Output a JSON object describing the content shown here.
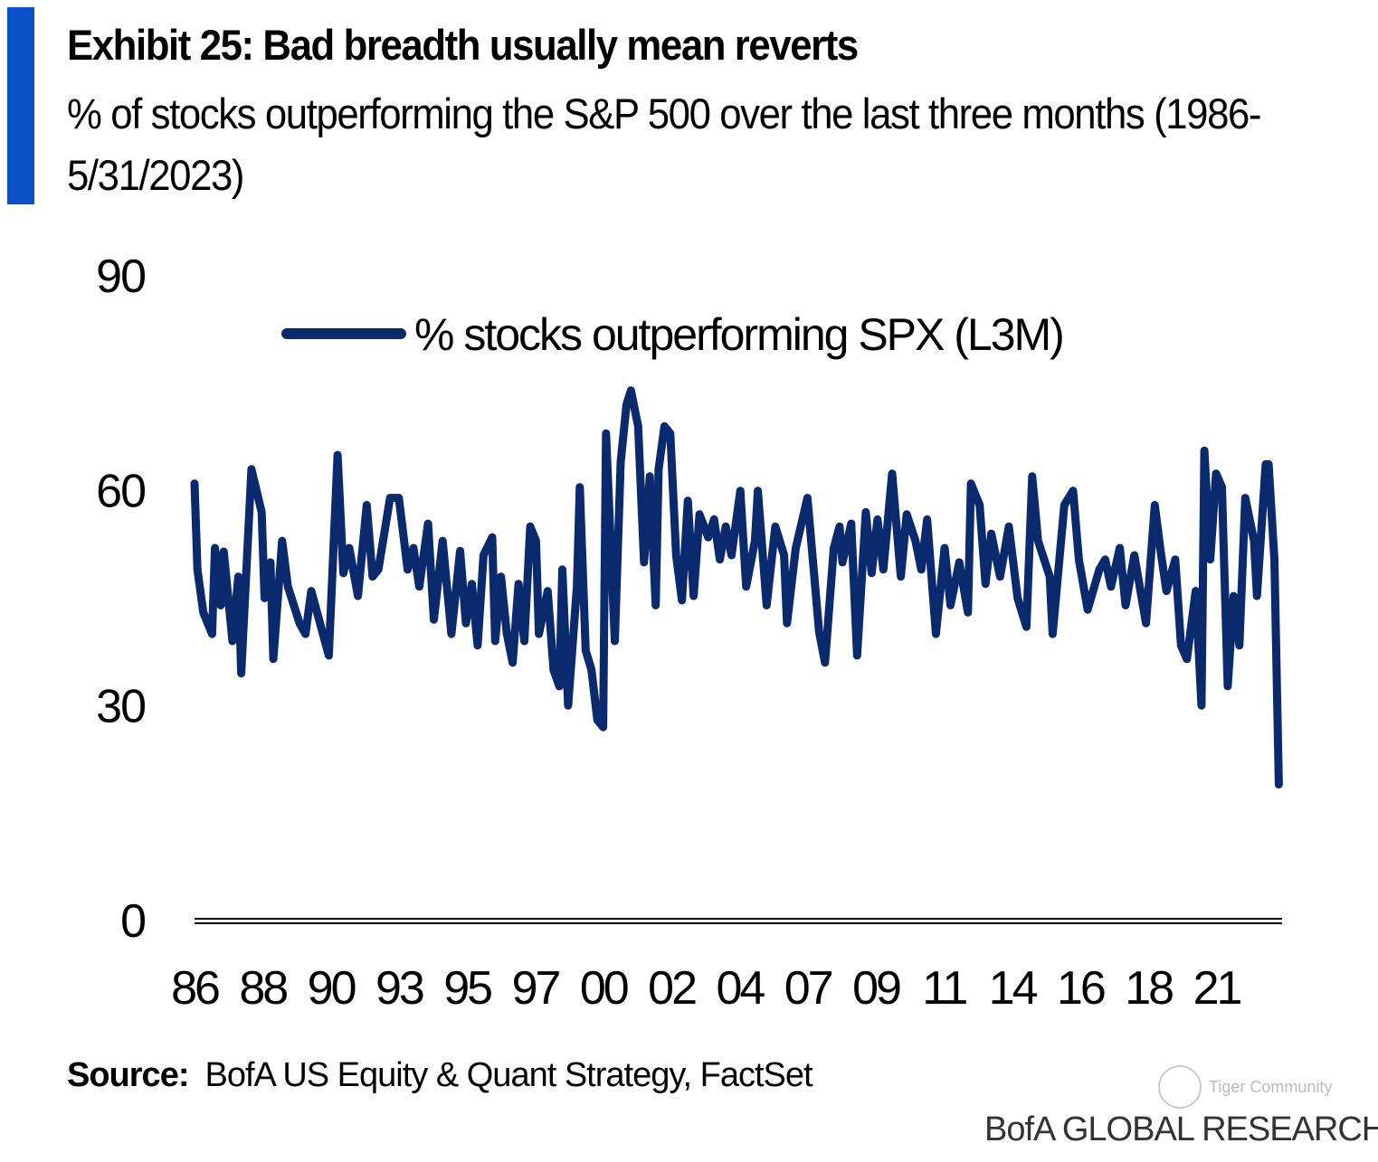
{
  "header": {
    "title": "Exhibit 25: Bad  breadth usually mean reverts",
    "subtitle": "% of stocks outperforming the S&P 500 over the last three months (1986-5/31/2023)"
  },
  "footer": {
    "source_label": "Source:",
    "source_text": "BofA US Equity  & Quant  Strategy, FactSet",
    "brand": "BofA GLOBAL RESEARCH",
    "watermark": "Tiger Community"
  },
  "colors": {
    "accent": "#0a50c8",
    "line": "#0b2a6e"
  },
  "chart_data": {
    "type": "line",
    "title": "",
    "xlabel": "",
    "ylabel": "",
    "ylim": [
      0,
      90
    ],
    "xlim": [
      1986,
      2023.2
    ],
    "y_ticks": [
      "0",
      "30",
      "60",
      "90"
    ],
    "x_tick_labels": [
      "86",
      "88",
      "90",
      "93",
      "95",
      "97",
      "00",
      "02",
      "04",
      "07",
      "09",
      "11",
      "14",
      "16",
      "18",
      "21"
    ],
    "grid": false,
    "legend": {
      "placement": "top",
      "entries": [
        "% stocks outperforming SPX (L3M)"
      ]
    },
    "series": [
      {
        "name": "% stocks outperforming SPX (L3M)",
        "x": [
          1986.0,
          1986.1,
          1986.3,
          1986.6,
          1986.7,
          1986.9,
          1987.0,
          1987.3,
          1987.5,
          1987.6,
          1987.95,
          1988.3,
          1988.4,
          1988.6,
          1988.7,
          1989.0,
          1989.2,
          1989.6,
          1989.8,
          1990.0,
          1990.3,
          1990.6,
          1990.9,
          1991.1,
          1991.3,
          1991.6,
          1991.9,
          1992.1,
          1992.3,
          1992.7,
          1993.0,
          1993.3,
          1993.5,
          1993.7,
          1994.0,
          1994.2,
          1994.5,
          1994.8,
          1995.1,
          1995.3,
          1995.5,
          1995.7,
          1995.9,
          1996.2,
          1996.3,
          1996.5,
          1996.7,
          1996.9,
          1997.1,
          1997.3,
          1997.5,
          1997.7,
          1997.8,
          1998.1,
          1998.3,
          1998.5,
          1998.6,
          1998.8,
          1999.1,
          1999.2,
          1999.4,
          1999.6,
          1999.8,
          2000.0,
          2000.1,
          2000.4,
          2000.6,
          2000.8,
          2000.95,
          2001.2,
          2001.4,
          2001.6,
          2001.8,
          2001.9,
          2002.1,
          2002.3,
          2002.5,
          2002.7,
          2002.9,
          2003.1,
          2003.3,
          2003.6,
          2003.8,
          2004.0,
          2004.2,
          2004.4,
          2004.7,
          2004.9,
          2005.2,
          2005.3,
          2005.6,
          2005.9,
          2006.2,
          2006.3,
          2006.6,
          2007.0,
          2007.4,
          2007.6,
          2007.9,
          2008.1,
          2008.2,
          2008.5,
          2008.7,
          2009.0,
          2009.2,
          2009.4,
          2009.6,
          2009.9,
          2010.2,
          2010.4,
          2010.7,
          2010.9,
          2011.1,
          2011.4,
          2011.7,
          2011.9,
          2012.2,
          2012.5,
          2012.6,
          2012.9,
          2013.1,
          2013.3,
          2013.6,
          2013.9,
          2014.2,
          2014.5,
          2014.7,
          2014.9,
          2015.3,
          2015.4,
          2015.8,
          2016.1,
          2016.3,
          2016.6,
          2017.0,
          2017.2,
          2017.4,
          2017.7,
          2017.9,
          2018.2,
          2018.6,
          2018.9,
          2019.1,
          2019.3,
          2019.6,
          2019.8,
          2020.0,
          2020.3,
          2020.5,
          2020.6,
          2020.8,
          2021.0,
          2021.2,
          2021.4,
          2021.6,
          2021.8,
          2022.0,
          2022.3,
          2022.4,
          2022.7,
          2022.8,
          2023.0,
          2023.15
        ],
        "values": [
          61,
          49,
          43,
          40,
          52,
          44,
          51.5,
          39,
          48,
          34.5,
          63,
          57,
          45,
          50,
          36.5,
          53,
          46.6,
          41.5,
          40,
          46,
          41.5,
          37,
          65,
          48.5,
          52,
          45.3,
          58,
          48,
          49,
          59,
          59,
          49,
          52,
          46.6,
          55.4,
          42,
          53,
          40,
          51.6,
          41.5,
          47,
          38.4,
          51,
          53.5,
          39,
          48,
          40,
          36,
          47,
          39,
          55,
          53,
          40,
          46,
          35,
          32.7,
          49,
          30,
          46.6,
          60.5,
          37.7,
          35,
          28,
          27,
          68,
          39,
          64,
          72,
          74,
          69,
          50,
          62,
          44,
          63,
          69,
          68,
          51,
          44.7,
          58.6,
          45.3,
          56.7,
          53.5,
          56,
          50.4,
          55,
          51,
          60,
          46.6,
          53,
          60,
          44,
          55,
          51,
          41.5,
          52,
          59,
          40.3,
          36,
          52,
          55,
          50,
          55.4,
          37,
          57,
          48.5,
          56,
          49,
          62.4,
          48,
          56.7,
          53,
          49,
          56,
          40,
          52,
          44,
          50,
          43,
          61,
          58,
          47,
          54,
          48,
          55,
          45,
          41,
          62,
          53,
          48,
          40,
          58,
          60,
          50.4,
          43.4,
          49,
          50.4,
          46.6,
          52,
          44,
          51,
          41.5,
          58,
          51.6,
          46,
          50.4,
          38.4,
          36.5,
          46,
          30,
          65.6,
          50.4,
          62.4,
          60.5,
          32.7,
          45.3,
          38.4,
          59,
          53,
          45.3,
          63.7,
          63.7,
          50.4,
          19
        ]
      }
    ]
  }
}
